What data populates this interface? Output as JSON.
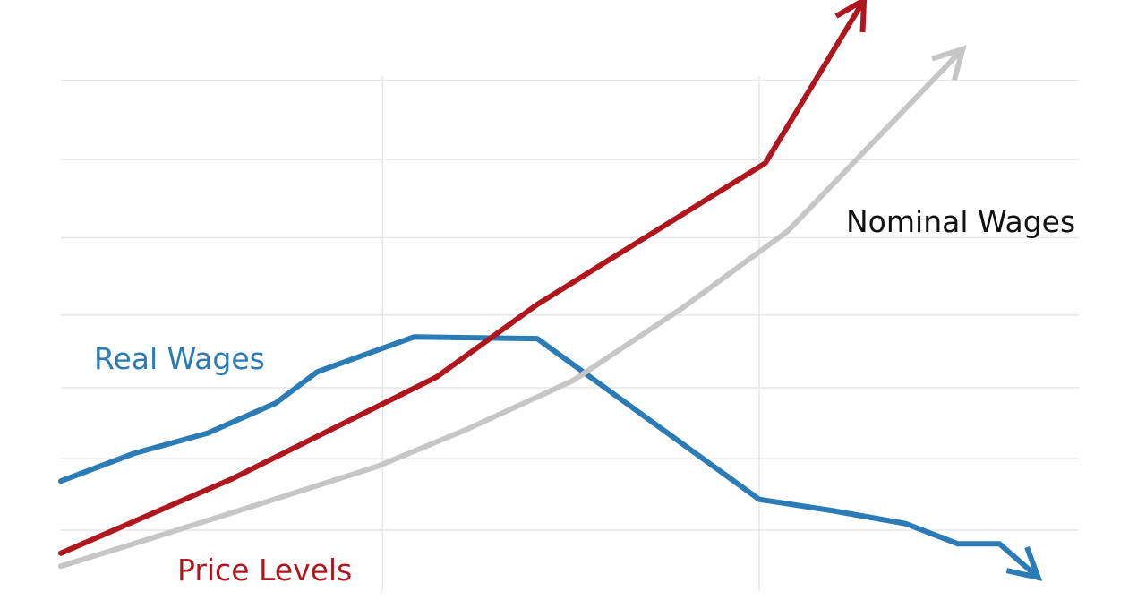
{
  "chart_data": {
    "type": "line",
    "title": "",
    "xlabel": "",
    "ylabel": "",
    "xlim": [
      0,
      100
    ],
    "ylim": [
      0,
      100
    ],
    "grid": true,
    "grid_x": [
      31.6,
      68.6
    ],
    "grid_y": [
      10.3,
      22.4,
      34.4,
      46.7,
      59.8,
      73.0,
      86.4
    ],
    "series": [
      {
        "name": "Real Wages",
        "color": "#2b7bb6",
        "x": [
          0,
          7.2,
          14.4,
          21.1,
          25.2,
          34.7,
          46.8,
          68.6,
          75.8,
          83.0,
          88.1,
          92.2,
          96.0
        ],
        "y": [
          18.6,
          23.3,
          26.7,
          31.8,
          37.1,
          43.0,
          42.7,
          15.5,
          13.6,
          11.4,
          8.0,
          8.0,
          2.3
        ],
        "arrow": true
      },
      {
        "name": "Price Levels",
        "color": "#b0161e",
        "x": [
          0,
          16.7,
          36.9,
          46.8,
          69.2,
          78.9
        ],
        "y": [
          6.4,
          18.9,
          36.2,
          48.5,
          72.4,
          100
        ],
        "arrow": true
      },
      {
        "name": "Nominal Wages",
        "color": "#c6c6c6",
        "label_color": "#111111",
        "x": [
          0,
          8.1,
          20.4,
          31.1,
          39.8,
          50.3,
          60.9,
          71.4,
          88.6
        ],
        "y": [
          4.2,
          8.5,
          15.2,
          21.1,
          27.3,
          35.6,
          47.7,
          60.9,
          91.7
        ],
        "arrow": true
      }
    ],
    "annotations": [
      "Real Wages",
      "Price Levels",
      "Nominal Wages"
    ]
  }
}
